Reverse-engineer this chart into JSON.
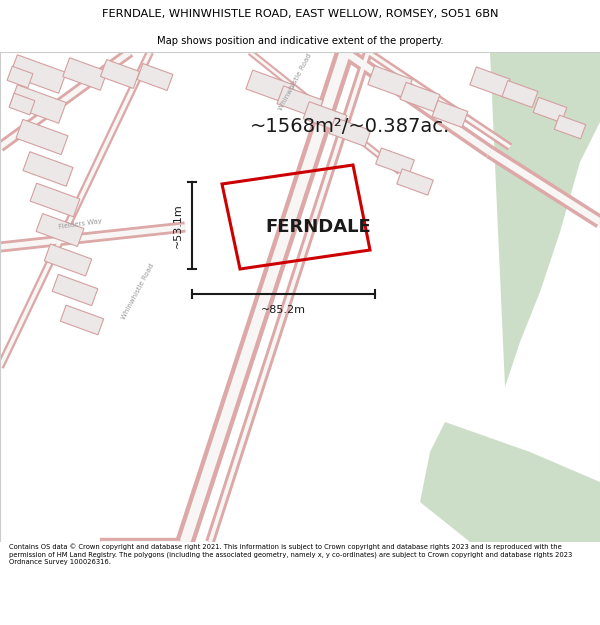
{
  "title_line1": "FERNDALE, WHINWHISTLE ROAD, EAST WELLOW, ROMSEY, SO51 6BN",
  "title_line2": "Map shows position and indicative extent of the property.",
  "area_text": "~1568m²/~0.387ac.",
  "property_label": "FERNDALE",
  "dim_height": "~53.1m",
  "dim_width": "~85.2m",
  "road_label1": "Whinwhistle Road",
  "road_label2": "Fielders Way",
  "road_label3": "Whinwhistle Road",
  "footer_text": "Contains OS data © Crown copyright and database right 2021. This information is subject to Crown copyright and database rights 2023 and is reproduced with the permission of HM Land Registry. The polygons (including the associated geometry, namely x, y co-ordinates) are subject to Crown copyright and database rights 2023 Ordnance Survey 100026316.",
  "map_bg": "#f7f6f4",
  "road_color": "#e8a8a8",
  "road_fill": "#f7f6f4",
  "property_edge_color": "#cc0000",
  "green_area_color": "#cddec8",
  "dim_line_color": "#1a1a1a",
  "text_color": "#1a1a1a",
  "road_label_color": "#999999",
  "bldg_fill": "#ede8e8",
  "bldg_edge": "#d4a0a0"
}
